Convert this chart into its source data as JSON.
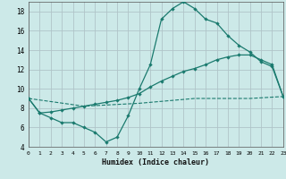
{
  "background_color": "#cce9e8",
  "plot_bg": "#cce9e8",
  "grid_color": "#b0c4c8",
  "line_color": "#1a7a6e",
  "xlabel": "Humidex (Indice chaleur)",
  "xlim": [
    0,
    23
  ],
  "ylim": [
    4,
    19
  ],
  "xticks": [
    0,
    1,
    2,
    3,
    4,
    5,
    6,
    7,
    8,
    9,
    10,
    11,
    12,
    13,
    14,
    15,
    16,
    17,
    18,
    19,
    20,
    21,
    22,
    23
  ],
  "yticks": [
    4,
    6,
    8,
    10,
    12,
    14,
    16,
    18
  ],
  "line1_x": [
    0,
    1,
    2,
    3,
    4,
    5,
    6,
    7,
    8,
    9,
    10,
    11,
    12,
    13,
    14,
    15,
    16,
    17,
    18,
    19,
    20,
    21,
    22,
    23
  ],
  "line1_y": [
    9.0,
    7.5,
    7.0,
    6.5,
    6.5,
    6.0,
    5.5,
    4.5,
    5.0,
    7.2,
    10.0,
    12.5,
    17.2,
    18.3,
    19.0,
    18.3,
    17.2,
    16.8,
    15.5,
    14.5,
    13.8,
    12.8,
    12.3,
    9.2
  ],
  "line2_x": [
    0,
    1,
    2,
    3,
    4,
    5,
    6,
    7,
    8,
    9,
    10,
    11,
    12,
    13,
    14,
    15,
    16,
    17,
    18,
    19,
    20,
    21,
    22,
    23
  ],
  "line2_y": [
    9.0,
    7.5,
    7.6,
    7.8,
    8.0,
    8.2,
    8.4,
    8.6,
    8.8,
    9.1,
    9.5,
    10.2,
    10.8,
    11.3,
    11.8,
    12.1,
    12.5,
    13.0,
    13.3,
    13.5,
    13.5,
    13.0,
    12.5,
    9.2
  ],
  "line3_x": [
    0,
    5,
    10,
    15,
    20,
    23
  ],
  "line3_y": [
    9.0,
    8.2,
    8.5,
    9.0,
    9.0,
    9.2
  ]
}
